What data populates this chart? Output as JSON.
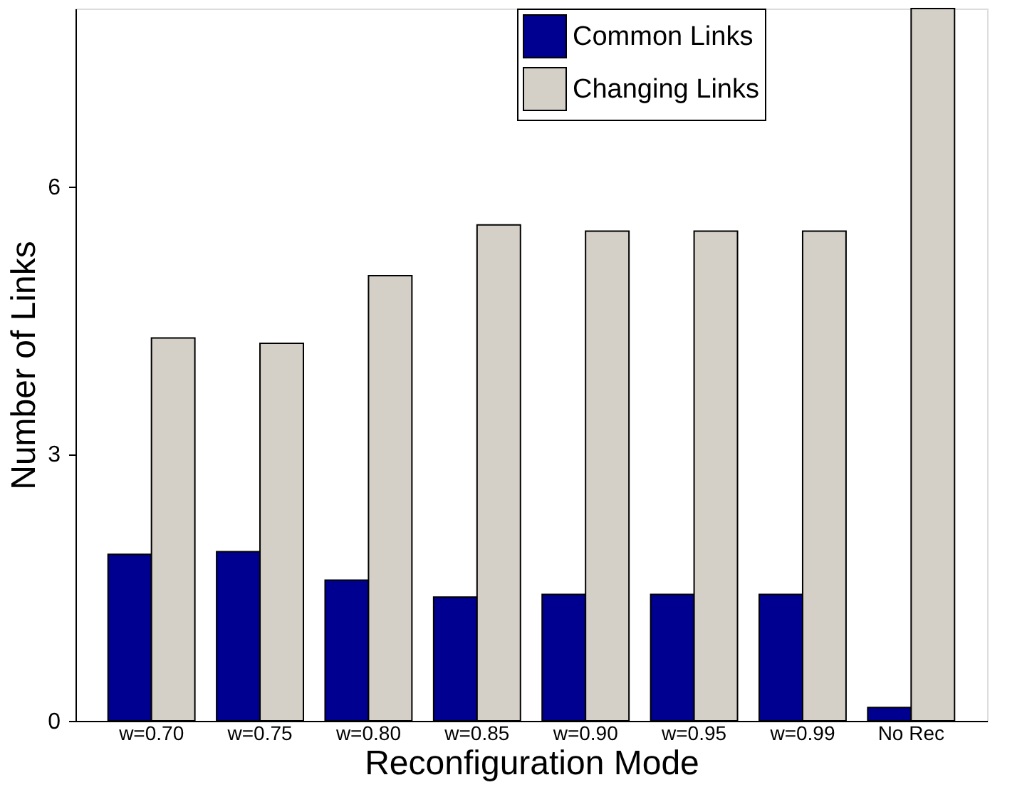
{
  "chart_data": {
    "type": "bar",
    "xlabel": "Reconfiguration Mode",
    "ylabel": "Number of Links",
    "categories": [
      "w=0.70",
      "w=0.75",
      "w=0.80",
      "w=0.85",
      "w=0.90",
      "w=0.95",
      "w=0.99",
      "No Rec"
    ],
    "series": [
      {
        "name": "Common Links",
        "color": "#000090",
        "values": [
          1.87,
          1.9,
          1.58,
          1.39,
          1.42,
          1.42,
          1.42,
          0.15
        ]
      },
      {
        "name": "Changing Links",
        "color": "#d4d0c8",
        "values": [
          4.3,
          4.24,
          5.0,
          5.57,
          5.5,
          5.5,
          5.5,
          8.0
        ]
      }
    ],
    "ylim": [
      0,
      8
    ],
    "yticks": [
      0,
      3,
      6
    ],
    "grid": false,
    "legend": "top right"
  }
}
